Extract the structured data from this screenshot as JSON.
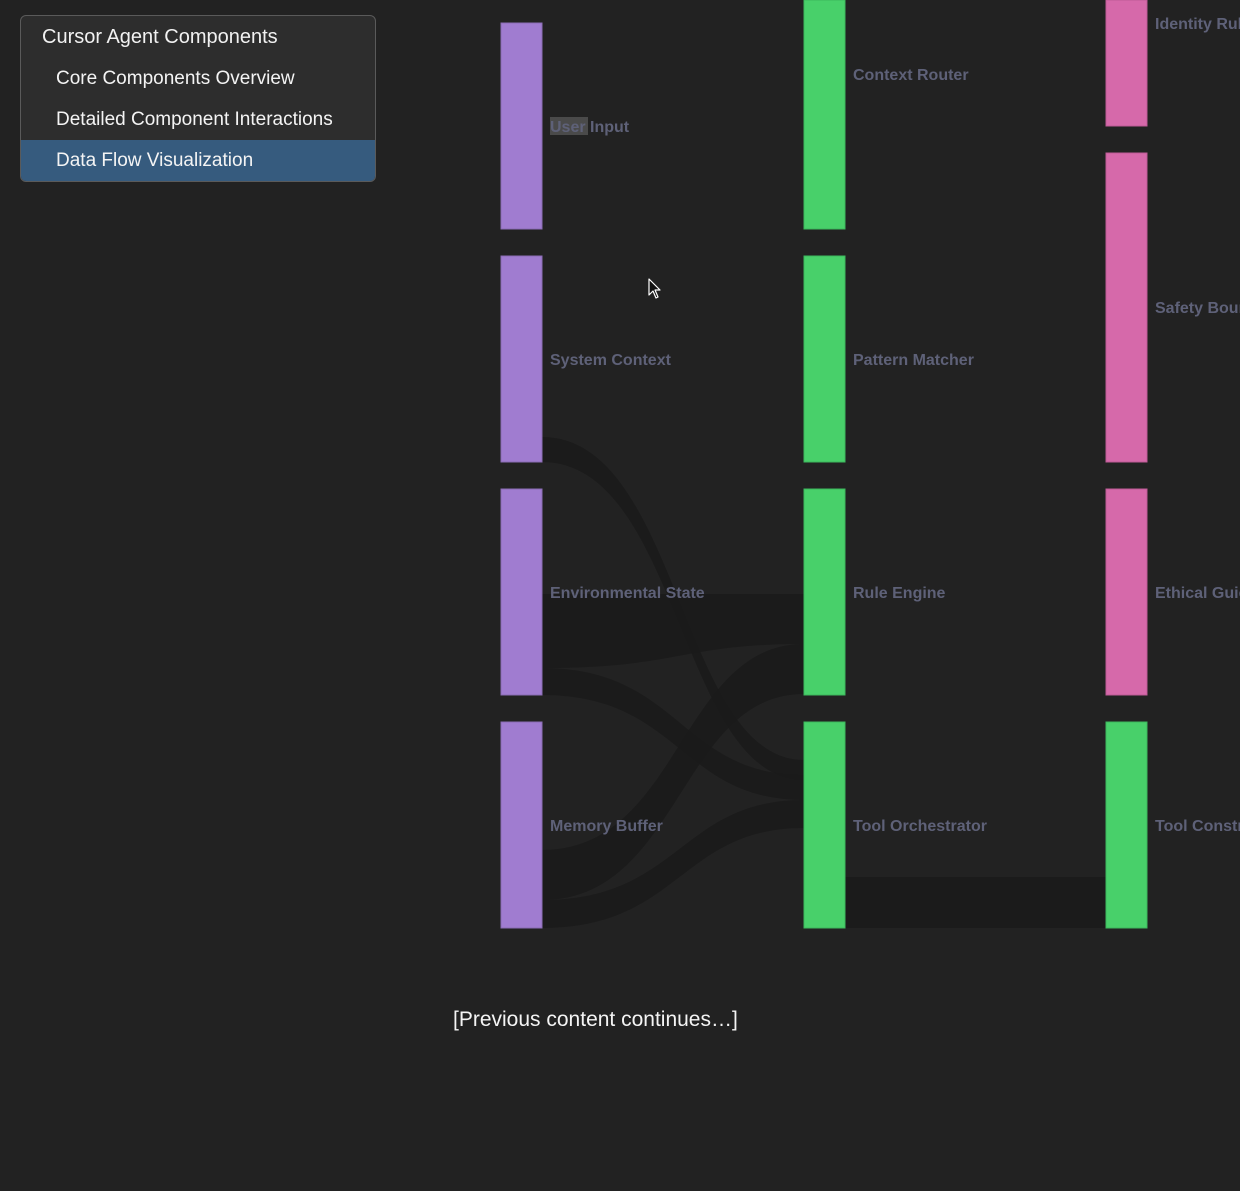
{
  "toc": {
    "title": "Cursor Agent Components",
    "items": [
      {
        "label": "Core Components Overview",
        "active": false
      },
      {
        "label": "Detailed Component Interactions",
        "active": false
      },
      {
        "label": "Data Flow Visualization",
        "active": true
      }
    ]
  },
  "sankey": {
    "colors": {
      "input": "#a07cd0",
      "processing": "#48d06a",
      "constraint": "#d669aa",
      "link": "#1b1b1b",
      "label": "#5e6178"
    },
    "nodes": [
      {
        "id": "user-input",
        "label": "User Input",
        "column": 0,
        "color": "input"
      },
      {
        "id": "system-context",
        "label": "System Context",
        "column": 0,
        "color": "input"
      },
      {
        "id": "environmental-state",
        "label": "Environmental State",
        "column": 0,
        "color": "input"
      },
      {
        "id": "memory-buffer",
        "label": "Memory Buffer",
        "column": 0,
        "color": "input"
      },
      {
        "id": "context-router",
        "label": "Context Router",
        "column": 1,
        "color": "processing"
      },
      {
        "id": "pattern-matcher",
        "label": "Pattern Matcher",
        "column": 1,
        "color": "processing"
      },
      {
        "id": "rule-engine",
        "label": "Rule Engine",
        "column": 1,
        "color": "processing"
      },
      {
        "id": "tool-orchestrator",
        "label": "Tool Orchestrator",
        "column": 1,
        "color": "processing"
      },
      {
        "id": "identity-rules",
        "label": "Identity Rul",
        "column": 2,
        "color": "constraint"
      },
      {
        "id": "safety-boundaries",
        "label": "Safety Bour",
        "column": 2,
        "color": "constraint"
      },
      {
        "id": "ethical-guidelines",
        "label": "Ethical Guic",
        "column": 2,
        "color": "constraint"
      },
      {
        "id": "tool-constraints",
        "label": "Tool Constr",
        "column": 2,
        "color": "processing"
      }
    ]
  },
  "footer": {
    "text": "[Previous content continues…]"
  }
}
